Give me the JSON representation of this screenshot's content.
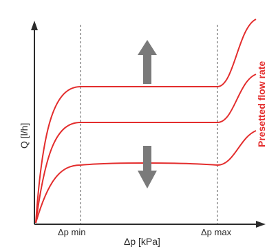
{
  "axes": {
    "y_label": "Q [l/h]",
    "x_label": "Δp [kPa]"
  },
  "markers": {
    "dp_min_label": "Δp min",
    "dp_max_label": "Δp max"
  },
  "side_label": "Presetted flow rate",
  "colors": {
    "curve": "#e32d2d",
    "arrow": "#7a7a7a",
    "axis": "#2b2b2b",
    "guide": "#555555"
  },
  "icons": {
    "up_arrow": "arrow-up-icon",
    "down_arrow": "arrow-down-icon"
  }
}
